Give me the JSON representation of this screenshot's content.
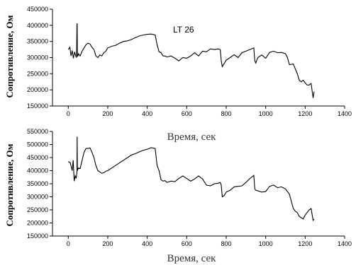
{
  "chart_data": [
    {
      "type": "line",
      "title": "",
      "annotation": "LT 26",
      "xlabel": "Время, сек",
      "ylabel": "Сопротивление, Ом",
      "xlim": [
        -80,
        1400
      ],
      "ylim": [
        150000,
        450000
      ],
      "xticks": [
        "0",
        "200",
        "400",
        "600",
        "800",
        "1000",
        "1200",
        "1400"
      ],
      "yticks": [
        "150000",
        "200000",
        "250000",
        "300000",
        "350000",
        "400000",
        "450000"
      ],
      "grid": false,
      "series": [
        {
          "x": [
            0,
            8,
            14,
            20,
            26,
            32,
            38,
            42,
            44,
            45,
            46,
            48,
            52,
            60,
            70,
            80,
            90,
            100,
            110,
            120,
            130,
            140,
            150,
            160,
            170,
            180,
            190,
            200,
            220,
            240,
            260,
            280,
            300,
            320,
            340,
            360,
            380,
            400,
            420,
            440,
            450,
            460,
            470,
            480,
            490,
            500,
            520,
            540,
            560,
            580,
            600,
            620,
            640,
            660,
            680,
            700,
            720,
            740,
            760,
            770,
            775,
            780,
            790,
            800,
            820,
            840,
            860,
            880,
            900,
            920,
            940,
            945,
            950,
            960,
            980,
            1000,
            1020,
            1040,
            1060,
            1080,
            1100,
            1110,
            1120,
            1140,
            1150,
            1160,
            1170,
            1180,
            1190,
            1200,
            1210,
            1220,
            1230,
            1240,
            1245
          ],
          "values": [
            325000,
            332000,
            305000,
            322000,
            298000,
            318000,
            305000,
            300000,
            405000,
            405000,
            310000,
            303000,
            312000,
            305000,
            320000,
            330000,
            340000,
            345000,
            342000,
            332000,
            325000,
            305000,
            300000,
            308000,
            305000,
            315000,
            320000,
            330000,
            335000,
            338000,
            345000,
            350000,
            352000,
            356000,
            362000,
            367000,
            370000,
            372000,
            373000,
            370000,
            340000,
            318000,
            315000,
            305000,
            305000,
            302000,
            305000,
            298000,
            290000,
            300000,
            298000,
            305000,
            315000,
            305000,
            320000,
            318000,
            327000,
            325000,
            327000,
            325000,
            290000,
            272000,
            282000,
            292000,
            300000,
            309000,
            300000,
            315000,
            320000,
            325000,
            330000,
            290000,
            283000,
            300000,
            308000,
            298000,
            316000,
            320000,
            315000,
            316000,
            312000,
            300000,
            278000,
            280000,
            265000,
            250000,
            230000,
            225000,
            230000,
            222000,
            215000,
            215000,
            220000,
            175000,
            195000
          ]
        }
      ]
    },
    {
      "type": "line",
      "title": "",
      "xlabel": "Время, сек",
      "ylabel": "Сопротивление, Ом",
      "xlim": [
        -80,
        1400
      ],
      "ylim": [
        150000,
        550000
      ],
      "xticks": [
        "0",
        "200",
        "400",
        "600",
        "800",
        "1000",
        "1200",
        "1400"
      ],
      "yticks": [
        "150000",
        "200000",
        "250000",
        "300000",
        "350000",
        "400000",
        "450000",
        "500000",
        "550000"
      ],
      "grid": false,
      "series": [
        {
          "x": [
            0,
            10,
            20,
            25,
            30,
            35,
            40,
            44,
            45,
            46,
            48,
            52,
            60,
            70,
            80,
            90,
            100,
            110,
            120,
            130,
            140,
            150,
            160,
            170,
            180,
            190,
            200,
            220,
            240,
            260,
            280,
            300,
            320,
            340,
            360,
            380,
            400,
            420,
            440,
            450,
            460,
            470,
            480,
            490,
            500,
            520,
            540,
            560,
            580,
            600,
            620,
            640,
            660,
            680,
            700,
            720,
            740,
            760,
            770,
            775,
            780,
            790,
            800,
            820,
            840,
            860,
            880,
            900,
            920,
            940,
            945,
            950,
            960,
            980,
            1000,
            1020,
            1040,
            1060,
            1080,
            1100,
            1110,
            1120,
            1140,
            1150,
            1160,
            1170,
            1180,
            1190,
            1200,
            1210,
            1220,
            1230,
            1240,
            1245
          ],
          "values": [
            435000,
            430000,
            400000,
            440000,
            360000,
            380000,
            370000,
            395000,
            530000,
            400000,
            405000,
            410000,
            408000,
            440000,
            470000,
            485000,
            485000,
            487000,
            470000,
            450000,
            420000,
            400000,
            395000,
            390000,
            392000,
            398000,
            400000,
            410000,
            420000,
            430000,
            440000,
            450000,
            460000,
            465000,
            472000,
            478000,
            482000,
            488000,
            485000,
            420000,
            400000,
            365000,
            360000,
            362000,
            355000,
            360000,
            358000,
            370000,
            380000,
            370000,
            360000,
            368000,
            380000,
            368000,
            345000,
            342000,
            350000,
            352000,
            355000,
            345000,
            300000,
            305000,
            318000,
            325000,
            338000,
            340000,
            342000,
            355000,
            370000,
            382000,
            330000,
            325000,
            323000,
            318000,
            320000,
            340000,
            345000,
            335000,
            338000,
            330000,
            320000,
            310000,
            255000,
            245000,
            240000,
            225000,
            220000,
            215000,
            230000,
            240000,
            250000,
            255000,
            210000,
            215000
          ]
        }
      ]
    }
  ]
}
